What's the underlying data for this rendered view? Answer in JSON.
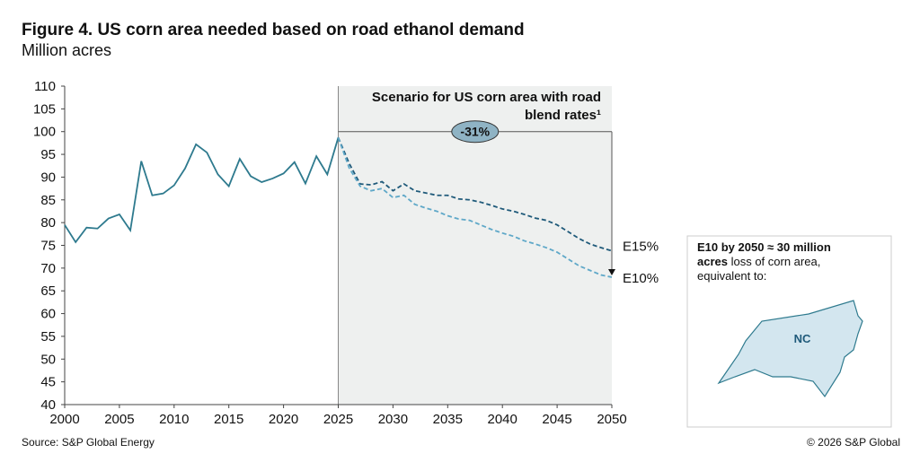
{
  "chart_data": {
    "type": "line",
    "title": "Figure 4. US corn area needed based on road ethanol demand",
    "subtitle": "Million acres",
    "x": [
      2000,
      2001,
      2002,
      2003,
      2004,
      2005,
      2006,
      2007,
      2008,
      2009,
      2010,
      2011,
      2012,
      2013,
      2014,
      2015,
      2016,
      2017,
      2018,
      2019,
      2020,
      2021,
      2022,
      2023,
      2024,
      2025,
      2026,
      2027,
      2028,
      2029,
      2030,
      2031,
      2032,
      2033,
      2034,
      2035,
      2036,
      2037,
      2038,
      2039,
      2040,
      2041,
      2042,
      2043,
      2044,
      2045,
      2046,
      2047,
      2048,
      2049,
      2050
    ],
    "series": [
      {
        "color": "#2e7a8e",
        "dashed": false,
        "values": [
          79.5,
          75.7,
          78.9,
          78.7,
          80.9,
          81.8,
          78.3,
          93.5,
          86.0,
          86.4,
          88.2,
          91.9,
          97.2,
          95.4,
          90.6,
          88.0,
          94.0,
          90.2,
          88.9,
          89.7,
          90.8,
          93.3,
          88.6,
          94.6,
          90.6,
          98.7,
          null,
          null,
          null,
          null,
          null,
          null,
          null,
          null,
          null,
          null,
          null,
          null,
          null,
          null,
          null,
          null,
          null,
          null,
          null,
          null,
          null,
          null,
          null,
          null,
          null
        ]
      },
      {
        "name": "E15%",
        "color": "#1f5a7a",
        "dashed": true,
        "values": [
          null,
          null,
          null,
          null,
          null,
          null,
          null,
          null,
          null,
          null,
          null,
          null,
          null,
          null,
          null,
          null,
          null,
          null,
          null,
          null,
          null,
          null,
          null,
          null,
          null,
          98.7,
          93,
          88.5,
          88.3,
          89,
          87,
          88.5,
          87,
          86.5,
          86,
          86,
          85.2,
          85,
          84.5,
          83.8,
          83,
          82.5,
          81.8,
          81,
          80.5,
          79.5,
          78,
          76.5,
          75.3,
          74.5,
          73.8
        ]
      },
      {
        "name": "E10%",
        "color": "#5fa8c8",
        "dashed": true,
        "values": [
          null,
          null,
          null,
          null,
          null,
          null,
          null,
          null,
          null,
          null,
          null,
          null,
          null,
          null,
          null,
          null,
          null,
          null,
          null,
          null,
          null,
          null,
          null,
          null,
          null,
          98.7,
          92,
          88,
          87,
          87.5,
          85.5,
          86,
          84,
          83.2,
          82.5,
          81.5,
          80.8,
          80.5,
          79.5,
          78.5,
          77.7,
          77,
          76,
          75.3,
          74.5,
          73.5,
          72,
          70.5,
          69.5,
          68.5,
          68
        ]
      }
    ],
    "xlim": [
      2000,
      2050
    ],
    "xticks": [
      2000,
      2005,
      2010,
      2015,
      2020,
      2025,
      2030,
      2035,
      2040,
      2045,
      2050
    ],
    "ylim": [
      40,
      110
    ],
    "yticks": [
      40,
      45,
      50,
      55,
      60,
      65,
      70,
      75,
      80,
      85,
      90,
      95,
      100,
      105,
      110
    ],
    "shade_x": [
      2025,
      2050
    ],
    "scenario_label": [
      "Scenario for US corn area with road",
      "blend rates¹"
    ],
    "change_label": "-31%",
    "inset": {
      "bold": "E10 by 2050 ≈ 30 million",
      "bold2": "acres",
      "text": " loss of corn area,",
      "text2": "equivalent to:",
      "state": "NC"
    },
    "source": "Source: S&P Global Energy",
    "copyright": "© 2026 S&P Global"
  }
}
